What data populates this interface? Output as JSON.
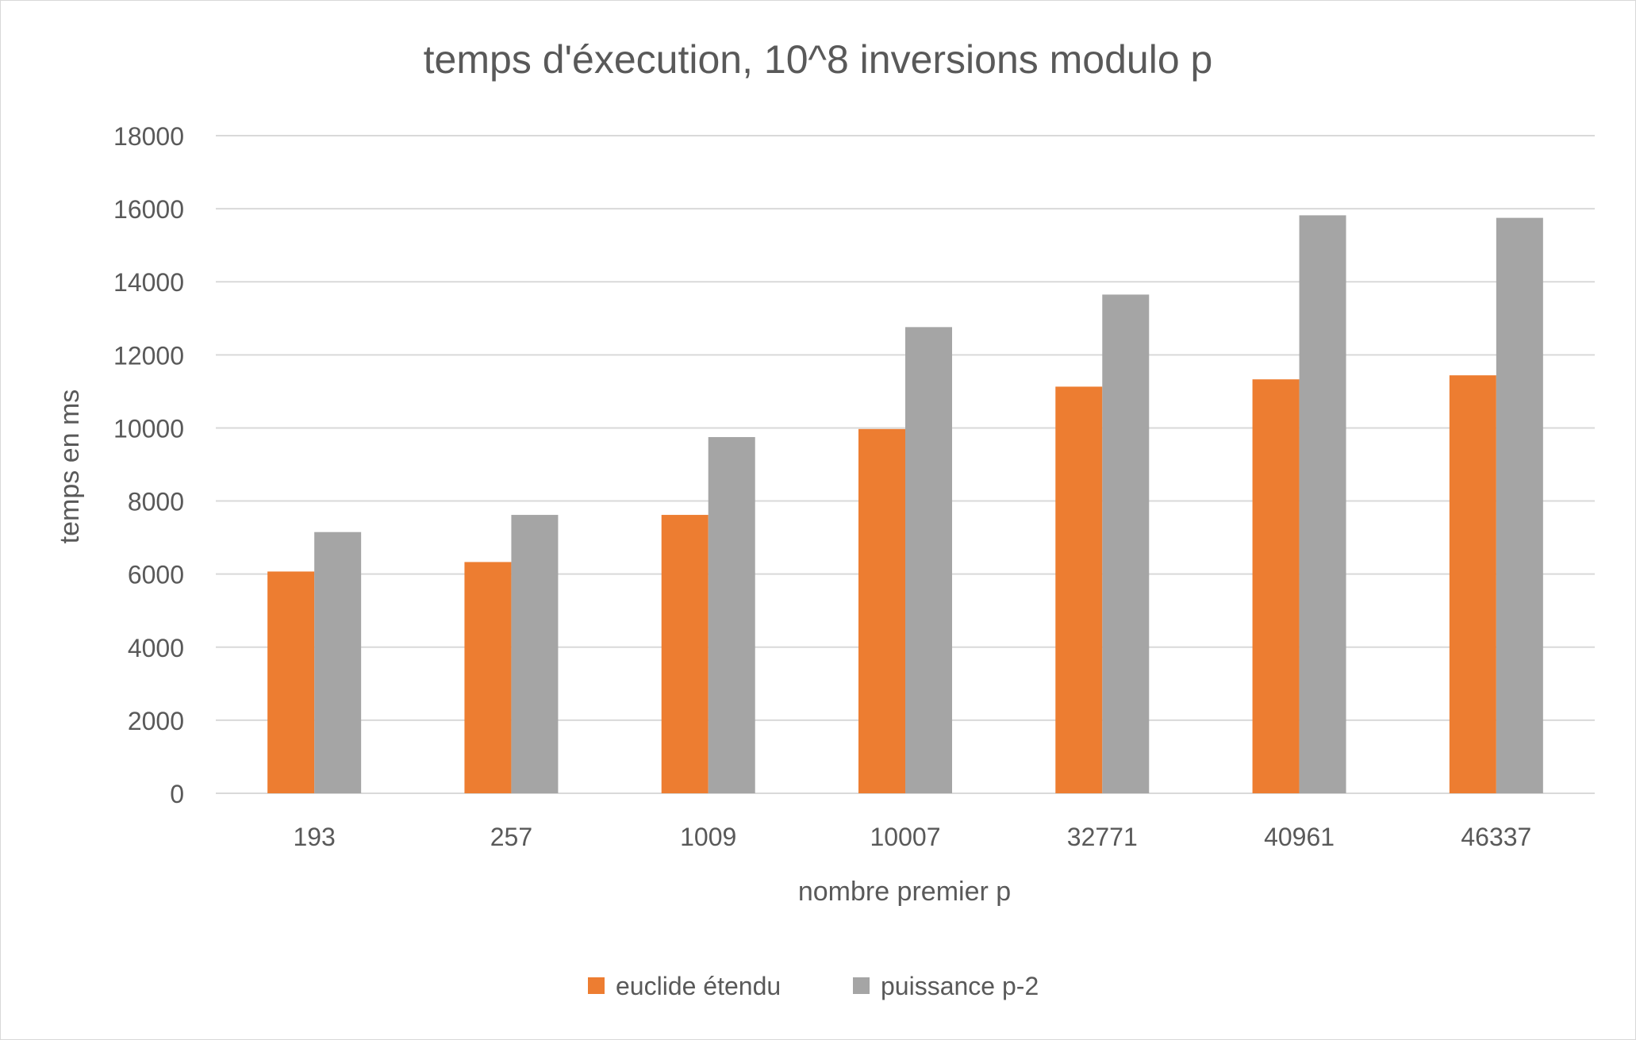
{
  "chart_data": {
    "type": "bar",
    "title": "temps d'éxecution, 10^8 inversions modulo p",
    "xlabel": "nombre premier p",
    "ylabel": "temps en ms",
    "categories": [
      "193",
      "257",
      "1009",
      "10007",
      "32771",
      "40961",
      "46337"
    ],
    "ylim": [
      0,
      18000
    ],
    "yticks": [
      0,
      2000,
      4000,
      6000,
      8000,
      10000,
      12000,
      14000,
      16000,
      18000
    ],
    "grid": true,
    "legend_position": "bottom",
    "series": [
      {
        "name": "euclide étendu",
        "color": "#ED7D31",
        "values": [
          6070,
          6330,
          7620,
          9970,
          11130,
          11330,
          11440
        ]
      },
      {
        "name": "puissance p-2",
        "color": "#A5A5A5",
        "values": [
          7150,
          7620,
          9750,
          12760,
          13650,
          15820,
          15750
        ]
      }
    ]
  }
}
